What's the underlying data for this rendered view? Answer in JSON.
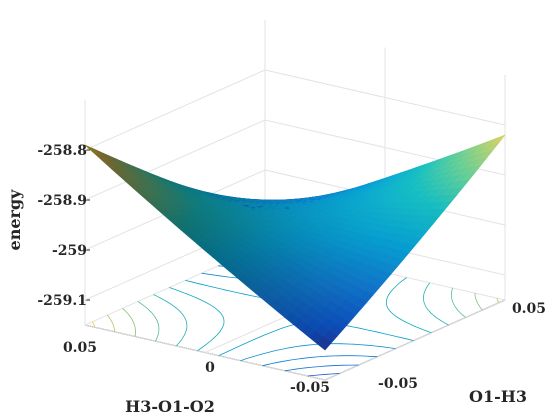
{
  "chart_data": {
    "type": "surface",
    "xlabel": "O1-H3",
    "ylabel": "H3-O1-O2",
    "zlabel": "energy",
    "xlim": [
      -0.05,
      0.05
    ],
    "ylim": [
      -0.05,
      0.05
    ],
    "zlim": [
      -259.15,
      -258.7
    ],
    "x_ticks": [
      "-0.05",
      "0.05"
    ],
    "y_ticks": [
      "0.05",
      "0",
      "-0.05"
    ],
    "z_ticks": [
      "-258.8",
      "-258.9",
      "-259",
      "-259.1"
    ],
    "z_tick_values": [
      -258.8,
      -258.9,
      -259.0,
      -259.1
    ],
    "saddle_point": {
      "x": 0.0,
      "y": 0.0,
      "z": -258.96
    },
    "corner_values": [
      {
        "x": -0.05,
        "y": 0.05,
        "z": -258.79
      },
      {
        "x": 0.05,
        "y": -0.05,
        "z": -258.82
      },
      {
        "x": -0.05,
        "y": -0.05,
        "z": -259.11
      },
      {
        "x": 0.05,
        "y": 0.05,
        "z": -259.07
      }
    ],
    "colormap": "parula",
    "contours_on_floor": true,
    "grid": true
  }
}
